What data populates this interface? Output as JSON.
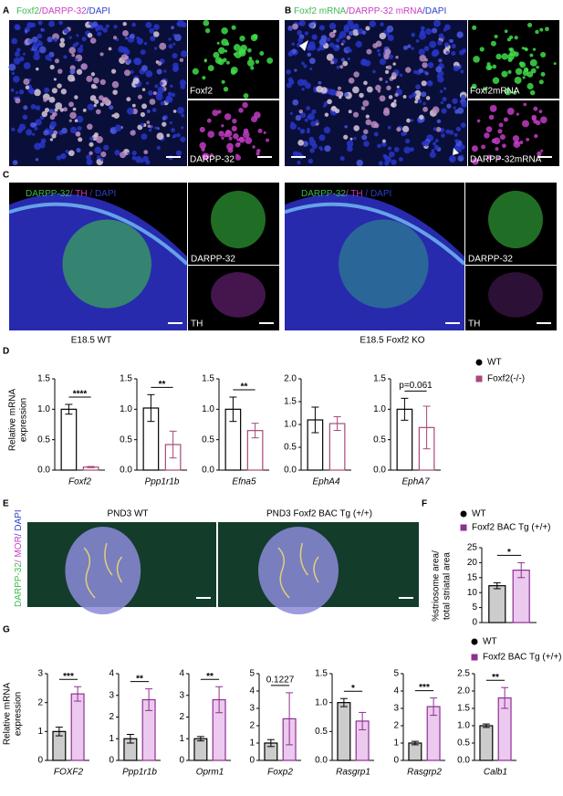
{
  "panels": {
    "A": {
      "label": "A",
      "title_parts": [
        {
          "text": "Foxf2",
          "color": "#3dbb4e"
        },
        {
          "text": "/DARPP-32",
          "color": "#c83cc4"
        },
        {
          "text": "/DAPI",
          "color": "#2b3fcf"
        }
      ],
      "insets": [
        "Foxf2",
        "DARPP-32"
      ]
    },
    "B": {
      "label": "B",
      "title_parts": [
        {
          "text": "Foxf2 mRNA",
          "color": "#3dbb4e"
        },
        {
          "text": "/DARPP-32 mRNA",
          "color": "#c83cc4"
        },
        {
          "text": "/DAPI",
          "color": "#2b3fcf"
        }
      ],
      "insets": [
        "Foxf2mRNA",
        "DARPP-32mRNA"
      ]
    },
    "C": {
      "label": "C",
      "images": [
        {
          "title_parts": [
            {
              "text": "DARPP-32",
              "color": "#3dbb4e"
            },
            {
              "text": "/ TH",
              "color": "#c83cc4"
            },
            {
              "text": " / DAPI",
              "color": "#2b3fcf"
            }
          ],
          "insets": [
            "DARPP-32",
            "TH"
          ],
          "caption": "E18.5 WT"
        },
        {
          "title_parts": [
            {
              "text": "DARPP-32",
              "color": "#3dbb4e"
            },
            {
              "text": "/ TH",
              "color": "#c83cc4"
            },
            {
              "text": " / DAPI",
              "color": "#2b3fcf"
            }
          ],
          "insets": [
            "DARPP-32",
            "TH"
          ],
          "caption": "E18.5 Foxf2 KO"
        }
      ]
    },
    "D": {
      "label": "D",
      "ylabel_lines": [
        "Relative mRNA",
        "expression"
      ],
      "legend": [
        {
          "name": "WT",
          "color": "#000000",
          "marker": "circle"
        },
        {
          "name": "Foxf2(-/-)",
          "color": "#a8497a",
          "marker": "square"
        }
      ]
    },
    "E": {
      "label": "E",
      "side_label_parts": [
        {
          "text": "DARPP-32",
          "color": "#3dbb4e"
        },
        {
          "text": "/ MOR",
          "color": "#c83cc4"
        },
        {
          "text": "/ DAPI",
          "color": "#2b3fcf"
        }
      ],
      "image_titles": [
        "PND3 WT",
        "PND3 Foxf2 BAC Tg (+/+)"
      ]
    },
    "F": {
      "label": "F",
      "ylabel_lines": [
        "%striosome area/",
        "total striatal area"
      ],
      "legend": [
        {
          "name": "WT",
          "color": "#000000",
          "marker": "circle"
        },
        {
          "name": "Foxf2 BAC Tg (+/+)",
          "color": "#8e2f93",
          "marker": "square"
        }
      ]
    },
    "G": {
      "label": "G",
      "ylabel_lines": [
        "Relative mRNA",
        "expression"
      ],
      "legend": [
        {
          "name": "WT",
          "color": "#000000",
          "marker": "circle"
        },
        {
          "name": "Foxf2 BAC Tg (+/+)",
          "color": "#8e2f93",
          "marker": "square"
        }
      ]
    }
  },
  "chart_data": [
    {
      "type": "bar",
      "panel": "D",
      "xlabel": "Foxf2",
      "ylim": [
        0,
        1.5
      ],
      "yticks": [
        {
          "value": 0,
          "label": "0.0"
        },
        {
          "value": 0.5,
          "label": "0.5"
        },
        {
          "value": 1,
          "label": "1.0"
        },
        {
          "value": 1.5,
          "label": "1.5"
        }
      ],
      "annotation": "****",
      "series": [
        {
          "color": "#000000",
          "fill": "#ffffff",
          "values": [
            1.0
          ],
          "errors": [
            0.08
          ]
        },
        {
          "color": "#a8497a",
          "fill": "#ffffff",
          "values": [
            0.05
          ],
          "errors": [
            0.01
          ]
        }
      ]
    },
    {
      "type": "bar",
      "panel": "D",
      "xlabel": "Ppp1r1b",
      "ylim": [
        0,
        1.5
      ],
      "yticks": [
        {
          "value": 0,
          "label": "0.0"
        },
        {
          "value": 0.5,
          "label": "0.5"
        },
        {
          "value": 1,
          "label": "1.0"
        },
        {
          "value": 1.5,
          "label": "1.5"
        }
      ],
      "annotation": "**",
      "series": [
        {
          "color": "#000000",
          "fill": "#ffffff",
          "values": [
            1.02
          ],
          "errors": [
            0.22
          ]
        },
        {
          "color": "#a8497a",
          "fill": "#ffffff",
          "values": [
            0.42
          ],
          "errors": [
            0.22
          ]
        }
      ]
    },
    {
      "type": "bar",
      "panel": "D",
      "xlabel": "Efna5",
      "ylim": [
        0,
        1.5
      ],
      "yticks": [
        {
          "value": 0,
          "label": "0.0"
        },
        {
          "value": 0.5,
          "label": "0.5"
        },
        {
          "value": 1,
          "label": "1.0"
        },
        {
          "value": 1.5,
          "label": "1.5"
        }
      ],
      "annotation": "**",
      "series": [
        {
          "color": "#000000",
          "fill": "#ffffff",
          "values": [
            1.0
          ],
          "errors": [
            0.2
          ]
        },
        {
          "color": "#a8497a",
          "fill": "#ffffff",
          "values": [
            0.65
          ],
          "errors": [
            0.12
          ]
        }
      ]
    },
    {
      "type": "bar",
      "panel": "D",
      "xlabel": "EphA4",
      "ylim": [
        0,
        2
      ],
      "yticks": [
        {
          "value": 0,
          "label": "0.0"
        },
        {
          "value": 0.5,
          "label": "0.5"
        },
        {
          "value": 1,
          "label": "1.0"
        },
        {
          "value": 1.5,
          "label": "1.5"
        },
        {
          "value": 2,
          "label": "2.0"
        }
      ],
      "series": [
        {
          "color": "#000000",
          "fill": "#ffffff",
          "values": [
            1.1
          ],
          "errors": [
            0.28
          ]
        },
        {
          "color": "#a8497a",
          "fill": "#ffffff",
          "values": [
            1.02
          ],
          "errors": [
            0.15
          ]
        }
      ]
    },
    {
      "type": "bar",
      "panel": "D",
      "xlabel": "EphA7",
      "ylim": [
        0,
        1.5
      ],
      "yticks": [
        {
          "value": 0,
          "label": "0.0"
        },
        {
          "value": 0.5,
          "label": "0.5"
        },
        {
          "value": 1,
          "label": "1.0"
        },
        {
          "value": 1.5,
          "label": "1.5"
        }
      ],
      "annotation": "p=0.061",
      "series": [
        {
          "color": "#000000",
          "fill": "#ffffff",
          "values": [
            1.0
          ],
          "errors": [
            0.18
          ]
        },
        {
          "color": "#a8497a",
          "fill": "#ffffff",
          "values": [
            0.7
          ],
          "errors": [
            0.35
          ]
        }
      ]
    },
    {
      "type": "bar",
      "panel": "F",
      "ylim": [
        0,
        25
      ],
      "yticks": [
        0,
        5,
        10,
        15,
        20,
        25
      ],
      "annotation": "*",
      "series": [
        {
          "color": "#000000",
          "fill": "#cccccc",
          "values": [
            12.3
          ],
          "errors": [
            1.0
          ]
        },
        {
          "color": "#8e2f93",
          "fill": "#ecc9ee",
          "values": [
            17.5
          ],
          "errors": [
            2.5
          ]
        }
      ]
    },
    {
      "type": "bar",
      "panel": "G",
      "xlabel": "FOXF2",
      "ylim": [
        0,
        3
      ],
      "yticks": [
        0,
        1,
        2,
        3
      ],
      "annotation": "***",
      "series": [
        {
          "color": "#000000",
          "fill": "#cccccc",
          "values": [
            1.0
          ],
          "errors": [
            0.15
          ]
        },
        {
          "color": "#8e2f93",
          "fill": "#ecc9ee",
          "values": [
            2.3
          ],
          "errors": [
            0.25
          ]
        }
      ]
    },
    {
      "type": "bar",
      "panel": "G",
      "xlabel": "Ppp1r1b",
      "ylim": [
        0,
        4
      ],
      "yticks": [
        0,
        1,
        2,
        3,
        4
      ],
      "annotation": "**",
      "series": [
        {
          "color": "#000000",
          "fill": "#cccccc",
          "values": [
            1.0
          ],
          "errors": [
            0.2
          ]
        },
        {
          "color": "#8e2f93",
          "fill": "#ecc9ee",
          "values": [
            2.8
          ],
          "errors": [
            0.5
          ]
        }
      ]
    },
    {
      "type": "bar",
      "panel": "G",
      "xlabel": "Oprm1",
      "ylim": [
        0,
        4
      ],
      "yticks": [
        0,
        1,
        2,
        3,
        4
      ],
      "annotation": "**",
      "series": [
        {
          "color": "#000000",
          "fill": "#cccccc",
          "values": [
            1.0
          ],
          "errors": [
            0.1
          ]
        },
        {
          "color": "#8e2f93",
          "fill": "#ecc9ee",
          "values": [
            2.8
          ],
          "errors": [
            0.6
          ]
        }
      ]
    },
    {
      "type": "bar",
      "panel": "G",
      "xlabel": "Foxp2",
      "ylim": [
        0,
        5
      ],
      "yticks": [
        0,
        1,
        2,
        3,
        4,
        5
      ],
      "annotation": "0.1227",
      "series": [
        {
          "color": "#000000",
          "fill": "#cccccc",
          "values": [
            1.0
          ],
          "errors": [
            0.2
          ]
        },
        {
          "color": "#8e2f93",
          "fill": "#ecc9ee",
          "values": [
            2.4
          ],
          "errors": [
            1.5
          ]
        }
      ]
    },
    {
      "type": "bar",
      "panel": "G",
      "xlabel": "Rasgrp1",
      "ylim": [
        0,
        1.5
      ],
      "yticks": [
        {
          "value": 0,
          "label": "0.0"
        },
        {
          "value": 0.5,
          "label": "0.5"
        },
        {
          "value": 1,
          "label": "1.0"
        },
        {
          "value": 1.5,
          "label": "1.5"
        }
      ],
      "annotation": "*",
      "series": [
        {
          "color": "#000000",
          "fill": "#cccccc",
          "values": [
            1.0
          ],
          "errors": [
            0.07
          ]
        },
        {
          "color": "#8e2f93",
          "fill": "#ecc9ee",
          "values": [
            0.68
          ],
          "errors": [
            0.15
          ]
        }
      ]
    },
    {
      "type": "bar",
      "panel": "G",
      "xlabel": "Rasgrp2",
      "ylim": [
        0,
        5
      ],
      "yticks": [
        0,
        1,
        2,
        3,
        4,
        5
      ],
      "annotation": "***",
      "series": [
        {
          "color": "#000000",
          "fill": "#cccccc",
          "values": [
            1.0
          ],
          "errors": [
            0.1
          ]
        },
        {
          "color": "#8e2f93",
          "fill": "#ecc9ee",
          "values": [
            3.1
          ],
          "errors": [
            0.5
          ]
        }
      ]
    },
    {
      "type": "bar",
      "panel": "G",
      "xlabel": "Calb1",
      "ylim": [
        0,
        2.5
      ],
      "yticks": [
        {
          "value": 0,
          "label": "0.0"
        },
        {
          "value": 0.5,
          "label": "0.5"
        },
        {
          "value": 1,
          "label": "1.0"
        },
        {
          "value": 1.5,
          "label": "1.5"
        },
        {
          "value": 2,
          "label": "2.0"
        },
        {
          "value": 2.5,
          "label": "2.5"
        }
      ],
      "annotation": "**",
      "series": [
        {
          "color": "#000000",
          "fill": "#cccccc",
          "values": [
            1.0
          ],
          "errors": [
            0.05
          ]
        },
        {
          "color": "#8e2f93",
          "fill": "#ecc9ee",
          "values": [
            1.8
          ],
          "errors": [
            0.3
          ]
        }
      ]
    }
  ]
}
